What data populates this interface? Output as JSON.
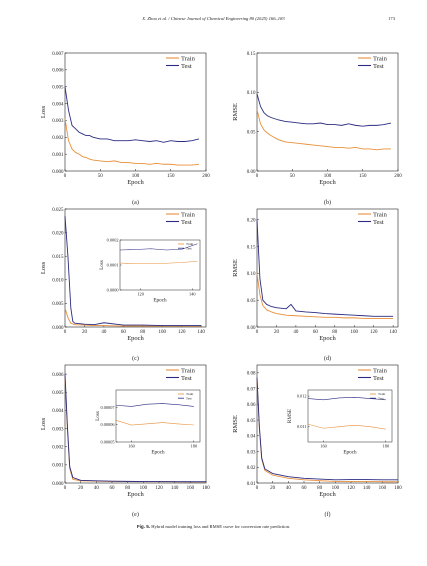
{
  "header": {
    "journal": "X. Zhou et al. / Chinese Journal of Chemical Engineering 80 (2025) 166–183",
    "page_number": "173"
  },
  "caption": {
    "label": "Fig. 5.",
    "text": "Hybrid model training loss and RMSE curve for conversion rate prediction."
  },
  "colors": {
    "train": "#e8903a",
    "test": "#2b2b82",
    "axis": "#222222"
  },
  "chart_data": [
    {
      "id": "a",
      "sublabel": "(a)",
      "type": "line",
      "xlabel": "Epoch",
      "ylabel": "Loss",
      "xlim": [
        0,
        200
      ],
      "ylim": [
        0,
        0.007
      ],
      "xticks": [
        0,
        50,
        100,
        150,
        200
      ],
      "xticklabels": [
        "0",
        "50",
        "100",
        "150",
        "200"
      ],
      "yticks": [
        0,
        0.001,
        0.002,
        0.003,
        0.004,
        0.005,
        0.006,
        0.007
      ],
      "yticklabels": [
        "0.000",
        "0.001",
        "0.002",
        "0.003",
        "0.004",
        "0.005",
        "0.006",
        "0.007"
      ],
      "legend": {
        "position": "top-right",
        "entries": [
          "Train",
          "Test"
        ]
      },
      "series": [
        {
          "name": "Train",
          "x": [
            0,
            5,
            10,
            15,
            20,
            25,
            30,
            35,
            40,
            50,
            60,
            70,
            80,
            90,
            100,
            110,
            120,
            130,
            140,
            150,
            160,
            170,
            180,
            190
          ],
          "y": [
            0.0031,
            0.0018,
            0.0013,
            0.0011,
            0.001,
            0.00085,
            0.0008,
            0.0007,
            0.00065,
            0.0006,
            0.00055,
            0.0006,
            0.0005,
            0.0005,
            0.00045,
            0.00045,
            0.0004,
            0.00045,
            0.0004,
            0.0004,
            0.00035,
            0.00035,
            0.00035,
            0.0004
          ]
        },
        {
          "name": "Test",
          "x": [
            0,
            5,
            10,
            15,
            20,
            25,
            30,
            35,
            40,
            50,
            60,
            70,
            80,
            90,
            100,
            110,
            120,
            130,
            140,
            150,
            160,
            170,
            180,
            190
          ],
          "y": [
            0.005,
            0.0036,
            0.0027,
            0.0025,
            0.0023,
            0.0022,
            0.0021,
            0.0021,
            0.002,
            0.0019,
            0.0019,
            0.0018,
            0.0018,
            0.0018,
            0.00185,
            0.0018,
            0.00175,
            0.0018,
            0.0017,
            0.0018,
            0.00175,
            0.00175,
            0.0018,
            0.0019
          ]
        }
      ]
    },
    {
      "id": "b",
      "sublabel": "(b)",
      "type": "line",
      "xlabel": "Epoch",
      "ylabel": "RMSE",
      "xlim": [
        0,
        200
      ],
      "ylim": [
        0,
        0.15
      ],
      "xticks": [
        0,
        50,
        100,
        150,
        200
      ],
      "xticklabels": [
        "0",
        "50",
        "100",
        "150",
        "200"
      ],
      "yticks": [
        0,
        0.05,
        0.1,
        0.15
      ],
      "yticklabels": [
        "0.00",
        "0.05",
        "0.10",
        "0.15"
      ],
      "legend": {
        "position": "top-right",
        "entries": [
          "Train",
          "Test"
        ]
      },
      "series": [
        {
          "name": "Train",
          "x": [
            0,
            5,
            10,
            15,
            20,
            30,
            40,
            50,
            60,
            70,
            80,
            90,
            100,
            110,
            120,
            130,
            140,
            150,
            160,
            170,
            180,
            190
          ],
          "y": [
            0.078,
            0.06,
            0.052,
            0.048,
            0.045,
            0.04,
            0.037,
            0.036,
            0.035,
            0.034,
            0.033,
            0.032,
            0.031,
            0.03,
            0.03,
            0.029,
            0.03,
            0.028,
            0.028,
            0.027,
            0.028,
            0.028
          ]
        },
        {
          "name": "Test",
          "x": [
            0,
            5,
            10,
            15,
            20,
            30,
            40,
            50,
            60,
            70,
            80,
            90,
            100,
            110,
            120,
            130,
            140,
            150,
            160,
            170,
            180,
            190
          ],
          "y": [
            0.098,
            0.082,
            0.074,
            0.07,
            0.068,
            0.065,
            0.063,
            0.062,
            0.061,
            0.06,
            0.06,
            0.061,
            0.059,
            0.059,
            0.058,
            0.06,
            0.058,
            0.057,
            0.058,
            0.058,
            0.059,
            0.061
          ]
        }
      ]
    },
    {
      "id": "c",
      "sublabel": "(c)",
      "type": "line",
      "xlabel": "Epoch",
      "ylabel": "Loss",
      "xlim": [
        0,
        145
      ],
      "ylim": [
        0,
        0.025
      ],
      "xticks": [
        0,
        20,
        40,
        60,
        80,
        100,
        120,
        140
      ],
      "xticklabels": [
        "0",
        "20",
        "40",
        "60",
        "80",
        "100",
        "120",
        "140"
      ],
      "yticks": [
        0,
        0.005,
        0.01,
        0.015,
        0.02,
        0.025
      ],
      "yticklabels": [
        "0.000",
        "0.005",
        "0.010",
        "0.015",
        "0.020",
        "0.025"
      ],
      "legend": {
        "position": "top-right",
        "entries": [
          "Train",
          "Test"
        ]
      },
      "series": [
        {
          "name": "Train",
          "x": [
            0,
            3,
            6,
            10,
            20,
            30,
            40,
            60,
            80,
            100,
            120,
            140
          ],
          "y": [
            0.004,
            0.002,
            0.0008,
            0.0005,
            0.0004,
            0.0003,
            0.0003,
            0.0002,
            0.0002,
            0.0002,
            0.0002,
            0.0002
          ]
        },
        {
          "name": "Test",
          "x": [
            0,
            3,
            6,
            8,
            10,
            20,
            30,
            40,
            60,
            80,
            100,
            120,
            140
          ],
          "y": [
            0.0235,
            0.015,
            0.004,
            0.0012,
            0.0008,
            0.0006,
            0.0005,
            0.0009,
            0.0004,
            0.0004,
            0.0003,
            0.0003,
            0.0003
          ]
        }
      ],
      "inset": {
        "xlabel": "Epoch",
        "ylabel": "Loss",
        "xlim": [
          112,
          143
        ],
        "ylim": [
          0,
          0.0002
        ],
        "xticks": [
          120,
          140
        ],
        "xticklabels": [
          "120",
          "140"
        ],
        "yticks": [
          0,
          0.0001,
          0.0002
        ],
        "yticklabels": [
          "0.0000",
          "0.0001",
          "0.0002"
        ],
        "legend": {
          "position": "top-right",
          "entries": [
            "Train",
            "Test"
          ]
        },
        "series": [
          {
            "name": "Train",
            "x": [
              112,
              118,
              124,
              130,
              136,
              142
            ],
            "y": [
              0.000108,
              0.000105,
              0.000105,
              0.000107,
              0.00011,
              0.000115
            ]
          },
          {
            "name": "Test",
            "x": [
              112,
              118,
              124,
              130,
              136,
              142
            ],
            "y": [
              0.00016,
              0.000162,
              0.000165,
              0.00016,
              0.000163,
              0.000185
            ]
          }
        ]
      }
    },
    {
      "id": "d",
      "sublabel": "(d)",
      "type": "line",
      "xlabel": "Epoch",
      "ylabel": "RMSE",
      "xlim": [
        0,
        145
      ],
      "ylim": [
        0,
        0.22
      ],
      "xticks": [
        0,
        20,
        40,
        60,
        80,
        100,
        120,
        140
      ],
      "xticklabels": [
        "0",
        "20",
        "40",
        "60",
        "80",
        "100",
        "120",
        "140"
      ],
      "yticks": [
        0,
        0.05,
        0.1,
        0.15,
        0.2
      ],
      "yticklabels": [
        "0.00",
        "0.05",
        "0.10",
        "0.15",
        "0.20"
      ],
      "legend": {
        "position": "top-right",
        "entries": [
          "Train",
          "Test"
        ]
      },
      "series": [
        {
          "name": "Train",
          "x": [
            0,
            3,
            6,
            10,
            15,
            20,
            30,
            40,
            50,
            60,
            70,
            80,
            90,
            100,
            110,
            120,
            130,
            140
          ],
          "y": [
            0.1,
            0.06,
            0.04,
            0.032,
            0.028,
            0.025,
            0.022,
            0.021,
            0.02,
            0.019,
            0.018,
            0.018,
            0.017,
            0.017,
            0.016,
            0.016,
            0.016,
            0.016
          ]
        },
        {
          "name": "Test",
          "x": [
            0,
            3,
            6,
            10,
            15,
            20,
            30,
            35,
            40,
            50,
            60,
            70,
            80,
            90,
            100,
            110,
            120,
            130,
            140
          ],
          "y": [
            0.2,
            0.09,
            0.05,
            0.042,
            0.038,
            0.036,
            0.034,
            0.042,
            0.03,
            0.028,
            0.027,
            0.025,
            0.024,
            0.023,
            0.022,
            0.021,
            0.02,
            0.02,
            0.02
          ]
        }
      ]
    },
    {
      "id": "e",
      "sublabel": "(e)",
      "type": "line",
      "xlabel": "Epoch",
      "ylabel": "Loss",
      "xlim": [
        0,
        180
      ],
      "ylim": [
        0,
        0.0065
      ],
      "xticks": [
        0,
        20,
        40,
        60,
        80,
        100,
        120,
        140,
        160,
        180
      ],
      "xticklabels": [
        "0",
        "20",
        "40",
        "60",
        "80",
        "100",
        "120",
        "140",
        "160",
        "180"
      ],
      "yticks": [
        0,
        0.001,
        0.002,
        0.003,
        0.004,
        0.005,
        0.006
      ],
      "yticklabels": [
        "0.000",
        "0.001",
        "0.002",
        "0.003",
        "0.004",
        "0.005",
        "0.006"
      ],
      "legend": {
        "position": "top-right",
        "entries": [
          "Train",
          "Test"
        ]
      },
      "series": [
        {
          "name": "Train",
          "x": [
            0,
            3,
            6,
            10,
            20,
            40,
            60,
            80,
            100,
            120,
            140,
            160,
            180
          ],
          "y": [
            0.0058,
            0.003,
            0.0008,
            0.0002,
            0.00012,
            0.0001,
            9e-05,
            8e-05,
            7e-05,
            7e-05,
            7e-05,
            6e-05,
            6e-05
          ]
        },
        {
          "name": "Test",
          "x": [
            0,
            3,
            6,
            10,
            20,
            40,
            60,
            80,
            100,
            120,
            140,
            160,
            180
          ],
          "y": [
            0.006,
            0.0032,
            0.0009,
            0.0003,
            0.00015,
            0.00012,
            0.0001,
            9e-05,
            8e-05,
            8e-05,
            7e-05,
            7e-05,
            7e-05
          ]
        }
      ],
      "inset": {
        "xlabel": "Epoch",
        "ylabel": "Loss",
        "xlim": [
          155,
          182
        ],
        "ylim": [
          5e-05,
          8e-05
        ],
        "xticks": [
          160,
          180
        ],
        "xticklabels": [
          "160",
          "180"
        ],
        "yticks": [
          5e-05,
          6e-05,
          7e-05
        ],
        "yticklabels": [
          "0.00005",
          "0.00006",
          "0.00007"
        ],
        "legend": {
          "position": "top-right",
          "entries": [
            "Train",
            "Test"
          ]
        },
        "series": [
          {
            "name": "Train",
            "x": [
              155,
              160,
              165,
              170,
              175,
              180
            ],
            "y": [
              6.25e-05,
              5.98e-05,
              6.05e-05,
              6.12e-05,
              6.04e-05,
              5.98e-05
            ]
          },
          {
            "name": "Test",
            "x": [
              155,
              160,
              165,
              170,
              175,
              180
            ],
            "y": [
              7.12e-05,
              7.05e-05,
              7.18e-05,
              7.22e-05,
              7.15e-05,
              7.05e-05
            ]
          }
        ]
      }
    },
    {
      "id": "f",
      "sublabel": "(f)",
      "type": "line",
      "xlabel": "Epoch",
      "ylabel": "RMSE",
      "xlim": [
        0,
        180
      ],
      "ylim": [
        0.01,
        0.085
      ],
      "xticks": [
        0,
        20,
        40,
        60,
        80,
        100,
        120,
        140,
        160,
        180
      ],
      "xticklabels": [
        "0",
        "20",
        "40",
        "60",
        "80",
        "100",
        "120",
        "140",
        "160",
        "180"
      ],
      "yticks": [
        0.01,
        0.02,
        0.03,
        0.04,
        0.05,
        0.06,
        0.07,
        0.08
      ],
      "yticklabels": [
        "0.01",
        "0.02",
        "0.03",
        "0.04",
        "0.05",
        "0.06",
        "0.07",
        "0.08"
      ],
      "legend": {
        "position": "top-right",
        "entries": [
          "Train",
          "Test"
        ]
      },
      "series": [
        {
          "name": "Train",
          "x": [
            0,
            3,
            6,
            10,
            20,
            40,
            60,
            80,
            100,
            120,
            140,
            160,
            180
          ],
          "y": [
            0.076,
            0.045,
            0.025,
            0.018,
            0.015,
            0.013,
            0.012,
            0.0115,
            0.011,
            0.011,
            0.011,
            0.0108,
            0.0108
          ]
        },
        {
          "name": "Test",
          "x": [
            0,
            3,
            6,
            10,
            20,
            40,
            60,
            80,
            100,
            120,
            140,
            160,
            180
          ],
          "y": [
            0.077,
            0.046,
            0.026,
            0.019,
            0.016,
            0.014,
            0.013,
            0.0125,
            0.012,
            0.0122,
            0.0122,
            0.012,
            0.012
          ]
        }
      ],
      "inset": {
        "xlabel": "Epoch",
        "ylabel": "RMSE",
        "xlim": [
          155,
          182
        ],
        "ylim": [
          0.0105,
          0.0122
        ],
        "xticks": [
          160,
          180
        ],
        "xticklabels": [
          "160",
          "180"
        ],
        "yticks": [
          0.011,
          0.012
        ],
        "yticklabels": [
          "0.011",
          "0.012"
        ],
        "legend": {
          "position": "top-right",
          "entries": [
            "Train",
            "Test"
          ]
        },
        "series": [
          {
            "name": "Train",
            "x": [
              155,
              160,
              165,
              170,
              175,
              180
            ],
            "y": [
              0.01108,
              0.01095,
              0.011,
              0.01105,
              0.011,
              0.01092
            ]
          },
          {
            "name": "Test",
            "x": [
              155,
              160,
              165,
              170,
              175,
              180
            ],
            "y": [
              0.01192,
              0.01188,
              0.01194,
              0.01196,
              0.01192,
              0.01188
            ]
          }
        ]
      }
    }
  ]
}
